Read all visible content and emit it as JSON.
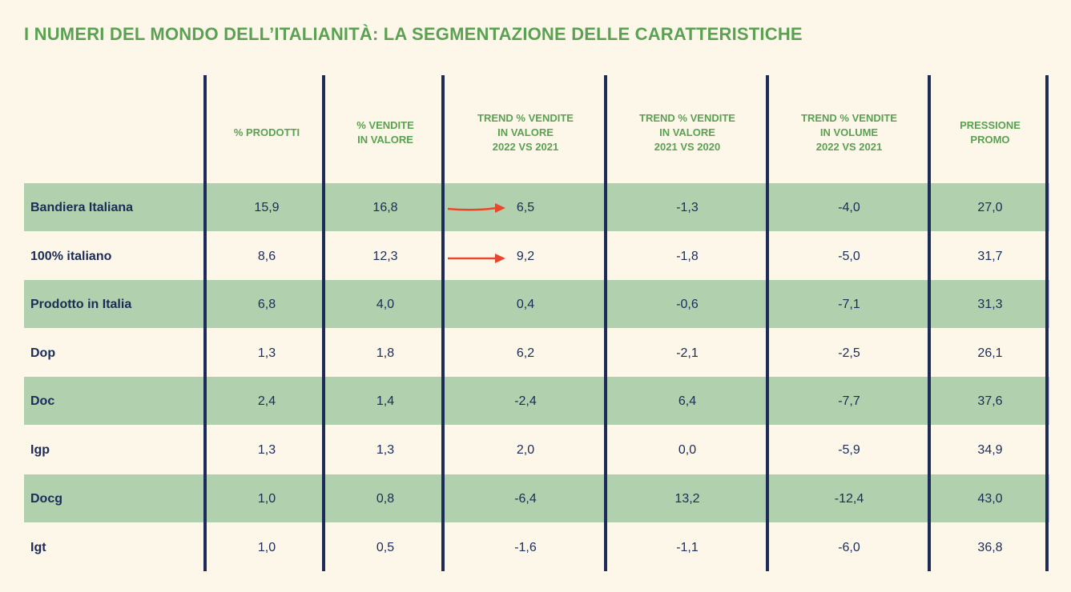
{
  "title": "I NUMERI DEL MONDO DELL’ITALIANITÀ: LA SEGMENTAZIONE DELLE CARATTERISTICHE",
  "columns": [
    "% PRODOTTI",
    "% VENDITE\nIN VALORE",
    "TREND % VENDITE\nIN VALORE\n2022 VS 2021",
    "TREND % VENDITE\nIN VALORE\n2021 VS 2020",
    "TREND % VENDITE\nIN VOLUME\n2022 VS 2021",
    "PRESSIONE\nPROMO"
  ],
  "rows": [
    {
      "label": "Bandiera Italiana",
      "values": [
        "15,9",
        "16,8",
        "6,5",
        "-1,3",
        "-4,0",
        "27,0"
      ],
      "highlighted": true,
      "arrow": true
    },
    {
      "label": "100% italiano",
      "values": [
        "8,6",
        "12,3",
        "9,2",
        "-1,8",
        "-5,0",
        "31,7"
      ],
      "highlighted": false,
      "arrow": true
    },
    {
      "label": "Prodotto in Italia",
      "values": [
        "6,8",
        "4,0",
        "0,4",
        "-0,6",
        "-7,1",
        "31,3"
      ],
      "highlighted": true,
      "arrow": false
    },
    {
      "label": "Dop",
      "values": [
        "1,3",
        "1,8",
        "6,2",
        "-2,1",
        "-2,5",
        "26,1"
      ],
      "highlighted": false,
      "arrow": false
    },
    {
      "label": "Doc",
      "values": [
        "2,4",
        "1,4",
        "-2,4",
        "6,4",
        "-7,7",
        "37,6"
      ],
      "highlighted": true,
      "arrow": false
    },
    {
      "label": "Igp",
      "values": [
        "1,3",
        "1,3",
        "2,0",
        "0,0",
        "-5,9",
        "34,9"
      ],
      "highlighted": false,
      "arrow": false
    },
    {
      "label": "Docg",
      "values": [
        "1,0",
        "0,8",
        "-6,4",
        "13,2",
        "-12,4",
        "43,0"
      ],
      "highlighted": true,
      "arrow": false
    },
    {
      "label": "Igt",
      "values": [
        "1,0",
        "0,5",
        "-1,6",
        "-1,1",
        "-6,0",
        "36,8"
      ],
      "highlighted": false,
      "arrow": false
    }
  ],
  "colors": {
    "background": "#fdf7ea",
    "stripe": "#b0d0ae",
    "accent_green": "#5aa152",
    "navy": "#1c2b57",
    "arrow": "#e8472b"
  }
}
